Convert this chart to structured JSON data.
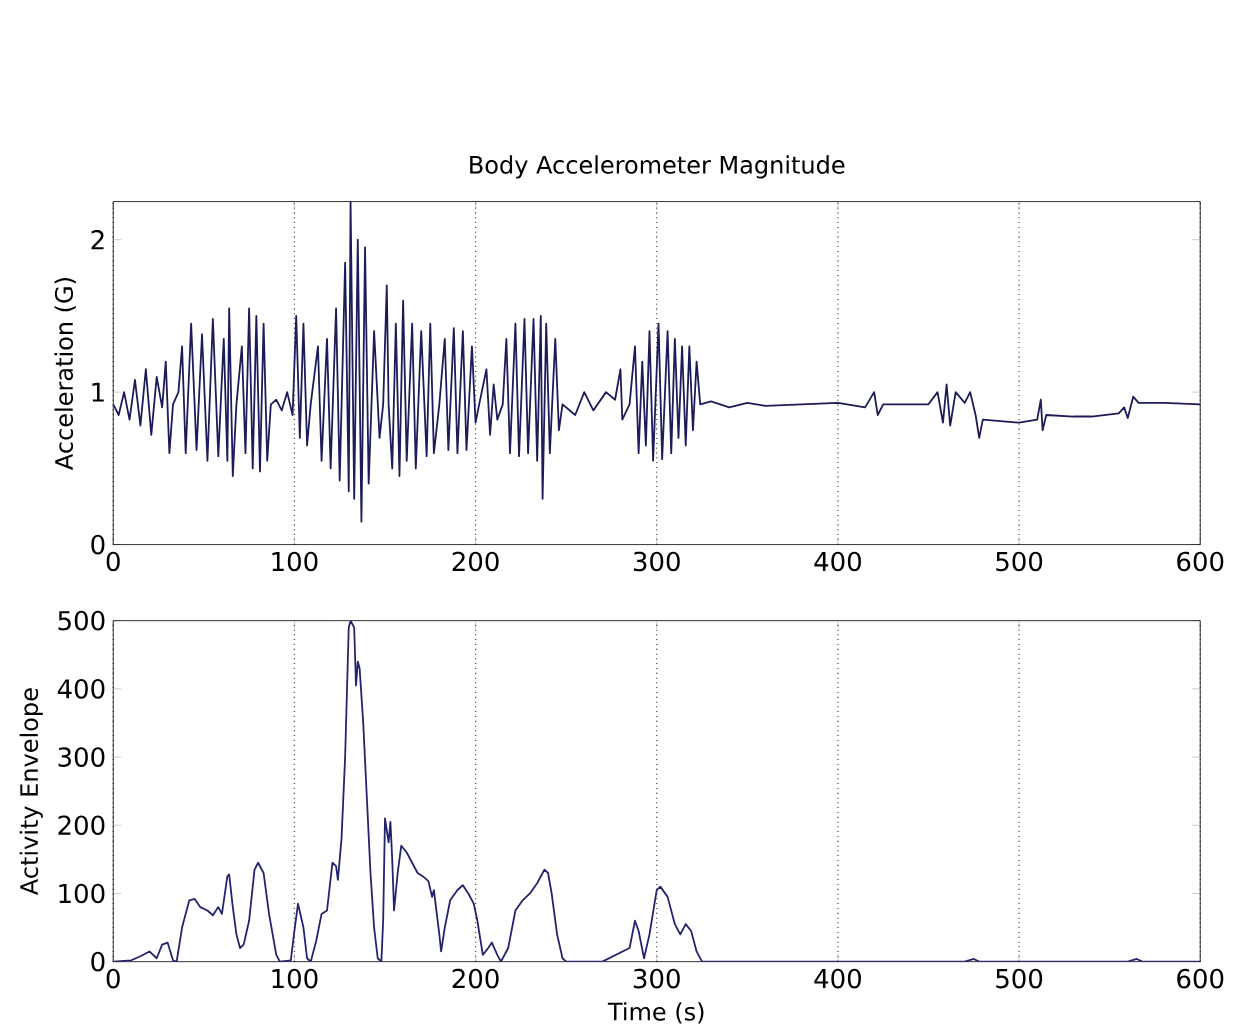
{
  "chart_data": [
    {
      "type": "line",
      "title": "Body Accelerometer Magnitude",
      "ylabel": "Acceleration (G)",
      "xlim": [
        0,
        600
      ],
      "xticks": [
        0,
        100,
        200,
        300,
        400,
        500,
        600
      ],
      "ylim": [
        0,
        2.25
      ],
      "yticks": [
        0,
        1,
        2
      ],
      "grid": "x",
      "series": [
        {
          "color": "#1c1c58",
          "x": [
            0,
            3,
            6,
            9,
            12,
            15,
            18,
            21,
            24,
            27,
            29,
            31,
            33,
            36,
            38,
            40,
            43,
            46,
            49,
            52,
            55,
            58,
            61,
            63,
            64,
            66,
            68,
            71,
            73,
            75,
            77,
            79,
            81,
            83,
            85,
            87,
            90,
            93,
            96,
            99,
            101,
            103,
            105,
            107,
            109,
            113,
            115,
            118,
            120,
            123,
            125,
            128,
            130,
            131,
            133,
            135,
            137,
            139,
            141,
            144,
            147,
            149,
            151,
            152,
            154,
            156,
            158,
            160,
            162,
            165,
            167,
            170,
            173,
            175,
            177,
            180,
            183,
            185,
            188,
            190,
            193,
            195,
            198,
            200,
            202,
            206,
            208,
            210,
            212,
            215,
            217,
            219,
            222,
            224,
            227,
            229,
            232,
            234,
            236,
            237,
            239,
            241,
            244,
            246,
            248,
            255,
            260,
            265,
            272,
            277,
            280,
            281,
            285,
            288,
            290,
            292,
            294,
            296,
            298,
            301,
            303,
            306,
            308,
            310,
            312,
            314,
            316,
            318,
            320,
            322,
            324,
            330,
            340,
            350,
            360,
            380,
            400,
            415,
            420,
            422,
            425,
            450,
            455,
            458,
            460,
            462,
            465,
            470,
            473,
            476,
            478,
            480,
            500,
            510,
            512,
            513,
            515,
            530,
            540,
            555,
            558,
            560,
            563,
            566,
            580,
            600
          ],
          "values": [
            0.92,
            0.85,
            1.0,
            0.82,
            1.08,
            0.78,
            1.15,
            0.72,
            1.1,
            0.9,
            1.2,
            0.6,
            0.92,
            1.0,
            1.3,
            0.6,
            1.45,
            0.62,
            1.38,
            0.55,
            1.48,
            0.58,
            1.35,
            0.55,
            1.55,
            0.45,
            0.92,
            1.3,
            0.6,
            1.55,
            0.5,
            1.5,
            0.48,
            1.45,
            0.55,
            0.92,
            0.95,
            0.88,
            1.0,
            0.85,
            1.5,
            0.7,
            1.45,
            0.65,
            0.92,
            1.3,
            0.55,
            1.35,
            0.5,
            1.55,
            0.42,
            1.85,
            0.35,
            2.25,
            0.3,
            2.0,
            0.15,
            1.95,
            0.4,
            1.4,
            0.7,
            0.92,
            1.7,
            0.92,
            0.5,
            1.45,
            0.45,
            1.6,
            0.55,
            1.45,
            0.5,
            1.4,
            0.58,
            1.45,
            0.6,
            0.92,
            1.35,
            0.62,
            1.42,
            0.6,
            1.4,
            0.62,
            1.3,
            0.8,
            0.92,
            1.15,
            0.72,
            1.05,
            0.82,
            0.92,
            1.35,
            0.6,
            1.45,
            0.58,
            1.48,
            0.6,
            1.48,
            0.55,
            1.5,
            0.3,
            1.45,
            0.6,
            1.35,
            0.75,
            0.92,
            0.85,
            1.0,
            0.88,
            1.0,
            0.95,
            1.15,
            0.82,
            0.92,
            1.3,
            0.6,
            1.2,
            0.65,
            1.4,
            0.55,
            1.45,
            0.56,
            1.4,
            0.6,
            1.35,
            0.7,
            1.3,
            0.65,
            1.3,
            0.75,
            1.2,
            0.92,
            0.94,
            0.9,
            0.93,
            0.91,
            0.92,
            0.93,
            0.9,
            1.0,
            0.85,
            0.92,
            0.92,
            1.0,
            0.8,
            1.05,
            0.78,
            1.0,
            0.93,
            1.0,
            0.85,
            0.7,
            0.82,
            0.8,
            0.82,
            0.95,
            0.75,
            0.85,
            0.84,
            0.84,
            0.86,
            0.9,
            0.83,
            0.97,
            0.93,
            0.93,
            0.92
          ]
        }
      ]
    },
    {
      "type": "line",
      "xlabel": "Time (s)",
      "ylabel": "Activity Envelope",
      "xlim": [
        0,
        600
      ],
      "xticks": [
        0,
        100,
        200,
        300,
        400,
        500,
        600
      ],
      "ylim": [
        0,
        500
      ],
      "yticks": [
        0,
        100,
        200,
        300,
        400,
        500
      ],
      "grid": "x",
      "series": [
        {
          "color": "#24246e",
          "x": [
            0,
            10,
            15,
            20,
            24,
            27,
            30,
            33,
            35,
            38,
            42,
            45,
            48,
            52,
            55,
            58,
            60,
            63,
            64,
            66,
            68,
            70,
            72,
            75,
            78,
            80,
            83,
            86,
            90,
            92,
            98,
            100,
            102,
            105,
            107,
            109,
            112,
            115,
            118,
            121,
            123,
            124,
            126,
            128,
            130,
            131,
            133,
            134,
            135,
            136,
            138,
            140,
            142,
            144,
            146,
            148,
            149,
            150,
            152,
            153,
            154,
            155,
            157,
            159,
            162,
            165,
            168,
            171,
            174,
            176,
            177,
            180,
            181,
            183,
            186,
            190,
            193,
            196,
            199,
            201,
            204,
            207,
            209,
            212,
            214,
            218,
            222,
            226,
            230,
            234,
            238,
            240,
            242,
            245,
            248,
            250,
            270,
            285,
            288,
            290,
            293,
            296,
            300,
            302,
            306,
            310,
            313,
            316,
            319,
            322,
            325,
            470,
            475,
            478,
            560,
            565,
            568,
            600
          ],
          "values": [
            0,
            2,
            8,
            15,
            5,
            25,
            28,
            2,
            0,
            50,
            90,
            92,
            80,
            75,
            68,
            80,
            70,
            125,
            128,
            80,
            40,
            20,
            25,
            60,
            135,
            145,
            130,
            70,
            10,
            0,
            2,
            45,
            85,
            50,
            5,
            0,
            30,
            70,
            75,
            145,
            140,
            120,
            180,
            300,
            490,
            500,
            490,
            405,
            440,
            430,
            350,
            240,
            130,
            50,
            5,
            0,
            60,
            210,
            175,
            205,
            150,
            75,
            130,
            170,
            160,
            145,
            130,
            125,
            118,
            95,
            105,
            40,
            15,
            50,
            90,
            105,
            112,
            100,
            85,
            60,
            10,
            20,
            28,
            10,
            0,
            20,
            75,
            90,
            100,
            115,
            135,
            130,
            100,
            40,
            5,
            0,
            0,
            20,
            60,
            45,
            5,
            40,
            105,
            110,
            95,
            55,
            40,
            55,
            45,
            15,
            0,
            0,
            4,
            0,
            0,
            4,
            0,
            0
          ]
        }
      ]
    }
  ]
}
